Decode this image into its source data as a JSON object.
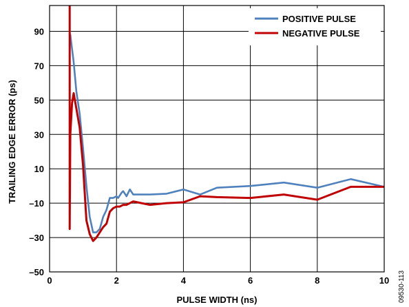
{
  "figure_id": "09530-113",
  "chart_data": {
    "type": "line",
    "xlabel": "PULSE WIDTH (ns)",
    "ylabel": "TRAILING EDGE ERROR (ps)",
    "xlim": [
      0,
      10
    ],
    "ylim": [
      -50,
      105
    ],
    "x_ticks": [
      0,
      2,
      4,
      6,
      8,
      10
    ],
    "x_tick_labels": [
      "0",
      "2",
      "4",
      "6",
      "8",
      "10"
    ],
    "y_ticks": [
      -50,
      -30,
      -10,
      10,
      30,
      50,
      70,
      90
    ],
    "y_tick_labels": [
      "–50",
      "–30",
      "–10",
      "10",
      "30",
      "50",
      "70",
      "90"
    ],
    "grid": true,
    "legend_position": "top-right",
    "series": [
      {
        "name": "POSITIVE PULSE",
        "color": "#4f81bd",
        "points": [
          [
            0.62,
            88
          ],
          [
            0.72,
            72
          ],
          [
            0.8,
            55
          ],
          [
            0.9,
            42
          ],
          [
            1.0,
            22
          ],
          [
            1.1,
            0
          ],
          [
            1.2,
            -18
          ],
          [
            1.3,
            -27
          ],
          [
            1.4,
            -27
          ],
          [
            1.5,
            -25
          ],
          [
            1.6,
            -18
          ],
          [
            1.7,
            -14
          ],
          [
            1.8,
            -7
          ],
          [
            1.9,
            -7
          ],
          [
            2.0,
            -6
          ],
          [
            2.05,
            -7
          ],
          [
            2.15,
            -4
          ],
          [
            2.2,
            -3
          ],
          [
            2.3,
            -6
          ],
          [
            2.4,
            -2
          ],
          [
            2.5,
            -5
          ],
          [
            3.0,
            -5
          ],
          [
            3.5,
            -4.5
          ],
          [
            4.0,
            -2
          ],
          [
            4.5,
            -5
          ],
          [
            5.0,
            -1
          ],
          [
            6.0,
            0
          ],
          [
            7.0,
            2
          ],
          [
            8.0,
            -1
          ],
          [
            9.0,
            4
          ],
          [
            10.0,
            -0.5
          ]
        ]
      },
      {
        "name": "NEGATIVE PULSE",
        "color": "#c00000",
        "points": [
          [
            0.6,
            106
          ],
          [
            0.6,
            -25
          ],
          [
            0.62,
            30
          ],
          [
            0.67,
            48
          ],
          [
            0.72,
            54
          ],
          [
            0.8,
            45
          ],
          [
            0.9,
            34
          ],
          [
            1.0,
            12
          ],
          [
            1.1,
            -20
          ],
          [
            1.2,
            -28
          ],
          [
            1.3,
            -32
          ],
          [
            1.4,
            -30
          ],
          [
            1.5,
            -27
          ],
          [
            1.6,
            -24
          ],
          [
            1.7,
            -22
          ],
          [
            1.8,
            -15
          ],
          [
            1.9,
            -13
          ],
          [
            2.0,
            -12
          ],
          [
            2.1,
            -12
          ],
          [
            2.2,
            -11
          ],
          [
            2.3,
            -11
          ],
          [
            2.5,
            -9
          ],
          [
            3.0,
            -11
          ],
          [
            3.5,
            -10
          ],
          [
            4.0,
            -9.5
          ],
          [
            4.5,
            -6
          ],
          [
            5.0,
            -6.5
          ],
          [
            6.0,
            -7
          ],
          [
            7.0,
            -5
          ],
          [
            8.0,
            -8
          ],
          [
            9.0,
            -0.5
          ],
          [
            10.0,
            -0.5
          ]
        ]
      }
    ]
  }
}
